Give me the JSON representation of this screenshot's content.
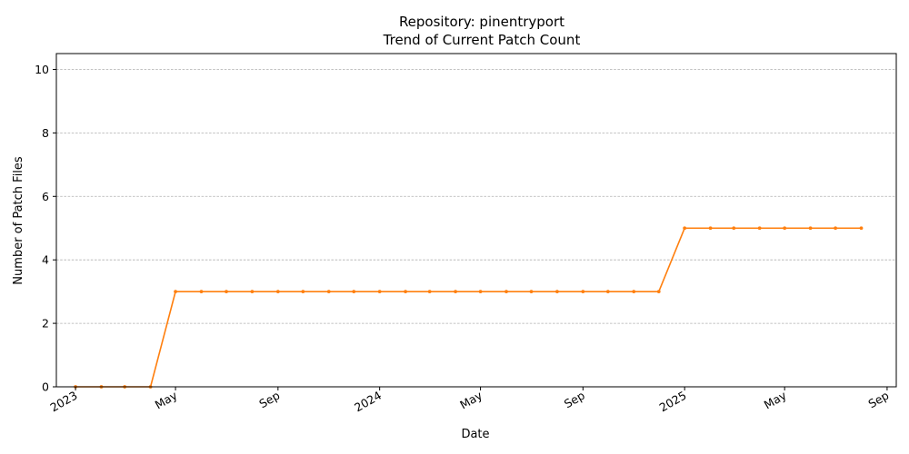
{
  "chart_data": {
    "type": "line",
    "title": "Repository: pinentryport",
    "subtitle": "Trend of Current Patch Count",
    "xlabel": "Date",
    "ylabel": "Number of Patch Files",
    "ylim": [
      0,
      10.5
    ],
    "yticks": [
      0,
      2,
      4,
      6,
      8,
      10
    ],
    "grid": "y-only, dashed",
    "legend": "none",
    "line_color": "#ff7f0e",
    "x_tick_labels": [
      {
        "date": "2023-01-01",
        "label": "2023"
      },
      {
        "date": "2023-05-01",
        "label": "May"
      },
      {
        "date": "2023-09-01",
        "label": "Sep"
      },
      {
        "date": "2024-01-01",
        "label": "2024"
      },
      {
        "date": "2024-05-01",
        "label": "May"
      },
      {
        "date": "2024-09-01",
        "label": "Sep"
      },
      {
        "date": "2025-01-01",
        "label": "2025"
      },
      {
        "date": "2025-05-01",
        "label": "May"
      },
      {
        "date": "2025-09-01",
        "label": "Sep"
      }
    ],
    "x_range": [
      "2022-12-09",
      "2025-09-12"
    ],
    "series": [
      {
        "x": [
          "2023-01-01",
          "2023-02-01",
          "2023-03-01",
          "2023-04-01",
          "2023-05-01",
          "2023-06-01",
          "2023-07-01",
          "2023-08-01",
          "2023-09-01",
          "2023-10-01",
          "2023-11-01",
          "2023-12-01",
          "2024-01-01",
          "2024-02-01",
          "2024-03-01",
          "2024-04-01",
          "2024-05-01",
          "2024-06-01",
          "2024-07-01",
          "2024-08-01",
          "2024-09-01",
          "2024-10-01",
          "2024-11-01",
          "2024-12-01",
          "2025-01-01",
          "2025-02-01",
          "2025-03-01",
          "2025-04-01",
          "2025-05-01",
          "2025-06-01",
          "2025-07-01",
          "2025-08-01"
        ],
        "values": [
          0,
          0,
          0,
          0,
          3,
          3,
          3,
          3,
          3,
          3,
          3,
          3,
          3,
          3,
          3,
          3,
          3,
          3,
          3,
          3,
          3,
          3,
          3,
          3,
          5,
          5,
          5,
          5,
          5,
          5,
          5,
          5
        ]
      }
    ]
  }
}
